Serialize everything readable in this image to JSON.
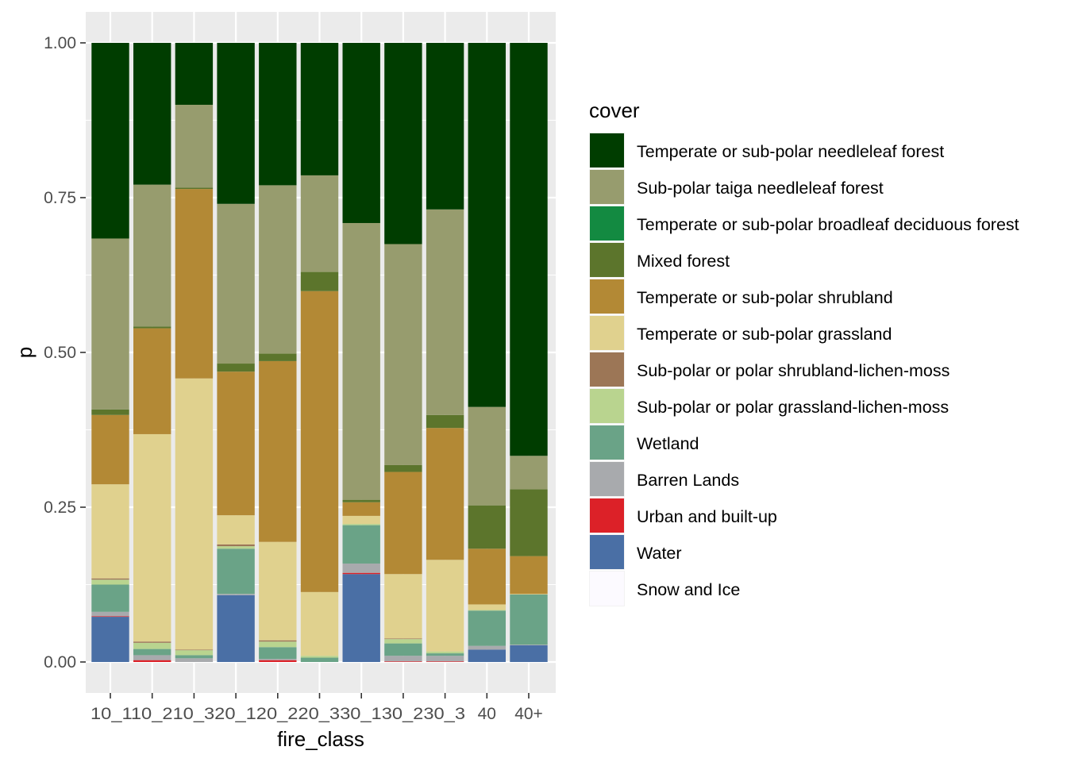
{
  "chart_data": {
    "type": "bar",
    "stacked": true,
    "xlabel": "fire_class",
    "ylabel": "p",
    "ylim": [
      0,
      1
    ],
    "yticks": [
      "0.00",
      "0.25",
      "0.50",
      "0.75",
      "1.00"
    ],
    "ytick_values": [
      0,
      0.25,
      0.5,
      0.75,
      1.0
    ],
    "grid": true,
    "legend_title": "cover",
    "legend_position": "right",
    "categories": [
      "10_1",
      "10_2",
      "10_3",
      "20_1",
      "20_2",
      "20_3",
      "30_1",
      "30_2",
      "30_3",
      "40",
      "40+"
    ],
    "category_labels": [
      "10_110_210_320_120_220_330_130_230_3",
      "",
      "",
      "",
      "",
      "",
      "",
      "",
      "",
      "40",
      "40+"
    ],
    "series": [
      {
        "name": "Water",
        "color": "#4A6FA5",
        "values": [
          0.073,
          0.0,
          0.0,
          0.108,
          0.0,
          0.0,
          0.142,
          0.0,
          0.0,
          0.02,
          0.027
        ]
      },
      {
        "name": "Urban and built-up",
        "color": "#DC2128",
        "values": [
          0.001,
          0.003,
          0.0,
          0.0,
          0.003,
          0.0,
          0.002,
          0.001,
          0.001,
          0.0,
          0.0
        ]
      },
      {
        "name": "Barren Lands",
        "color": "#A8AAAD",
        "values": [
          0.007,
          0.008,
          0.006,
          0.002,
          0.002,
          0.0,
          0.015,
          0.009,
          0.009,
          0.006,
          0.001
        ]
      },
      {
        "name": "Wetland",
        "color": "#6AA387",
        "values": [
          0.044,
          0.01,
          0.005,
          0.073,
          0.019,
          0.007,
          0.062,
          0.02,
          0.004,
          0.057,
          0.081
        ]
      },
      {
        "name": "Sub-polar or polar grassland-lichen-moss",
        "color": "#B9D48F",
        "values": [
          0.008,
          0.01,
          0.008,
          0.004,
          0.009,
          0.003,
          0.002,
          0.007,
          0.003,
          0.001,
          0.0
        ]
      },
      {
        "name": "Sub-polar or polar shrubland-lichen-moss",
        "color": "#9C7656",
        "values": [
          0.002,
          0.002,
          0.001,
          0.003,
          0.002,
          0.0,
          0.0,
          0.001,
          0.0,
          0.0,
          0.0
        ]
      },
      {
        "name": "Temperate or sub-polar grassland",
        "color": "#E0D18E",
        "values": [
          0.152,
          0.335,
          0.438,
          0.047,
          0.159,
          0.103,
          0.013,
          0.104,
          0.148,
          0.009,
          0.001
        ]
      },
      {
        "name": "Temperate or sub-polar shrubland",
        "color": "#B38935",
        "values": [
          0.112,
          0.171,
          0.306,
          0.232,
          0.292,
          0.486,
          0.022,
          0.165,
          0.213,
          0.09,
          0.061
        ]
      },
      {
        "name": "Mixed forest",
        "color": "#5C752C",
        "values": [
          0.009,
          0.003,
          0.002,
          0.013,
          0.012,
          0.031,
          0.004,
          0.011,
          0.021,
          0.07,
          0.108
        ]
      },
      {
        "name": "Temperate or sub-polar broadleaf deciduous forest",
        "color": "#138A41",
        "values": [
          0.0,
          0.0,
          0.0,
          0.0,
          0.0,
          0.0,
          0.0,
          0.0,
          0.0,
          0.0,
          0.0
        ]
      },
      {
        "name": "Sub-polar taiga needleleaf forest",
        "color": "#979C6E",
        "values": [
          0.276,
          0.229,
          0.134,
          0.258,
          0.272,
          0.156,
          0.447,
          0.357,
          0.332,
          0.159,
          0.054
        ]
      },
      {
        "name": "Temperate or sub-polar needleleaf forest",
        "color": "#003D00",
        "values": [
          0.316,
          0.229,
          0.1,
          0.26,
          0.23,
          0.214,
          0.291,
          0.325,
          0.269,
          0.588,
          0.667
        ]
      },
      {
        "name": "Snow and Ice",
        "color": "#FCFAFF",
        "values": [
          0,
          0,
          0,
          0,
          0,
          0,
          0,
          0,
          0,
          0,
          0
        ]
      }
    ],
    "legend_order": [
      "Temperate or sub-polar needleleaf forest",
      "Sub-polar taiga needleleaf forest",
      "Temperate or sub-polar broadleaf deciduous forest",
      "Mixed forest",
      "Temperate or sub-polar shrubland",
      "Temperate or sub-polar grassland",
      "Sub-polar or polar shrubland-lichen-moss",
      "Sub-polar or polar grassland-lichen-moss",
      "Wetland",
      "Barren Lands",
      "Urban and built-up",
      "Water",
      "Snow and Ice"
    ],
    "panel_background": "#EBEBEB",
    "grid_color": "#FFFFFF"
  }
}
